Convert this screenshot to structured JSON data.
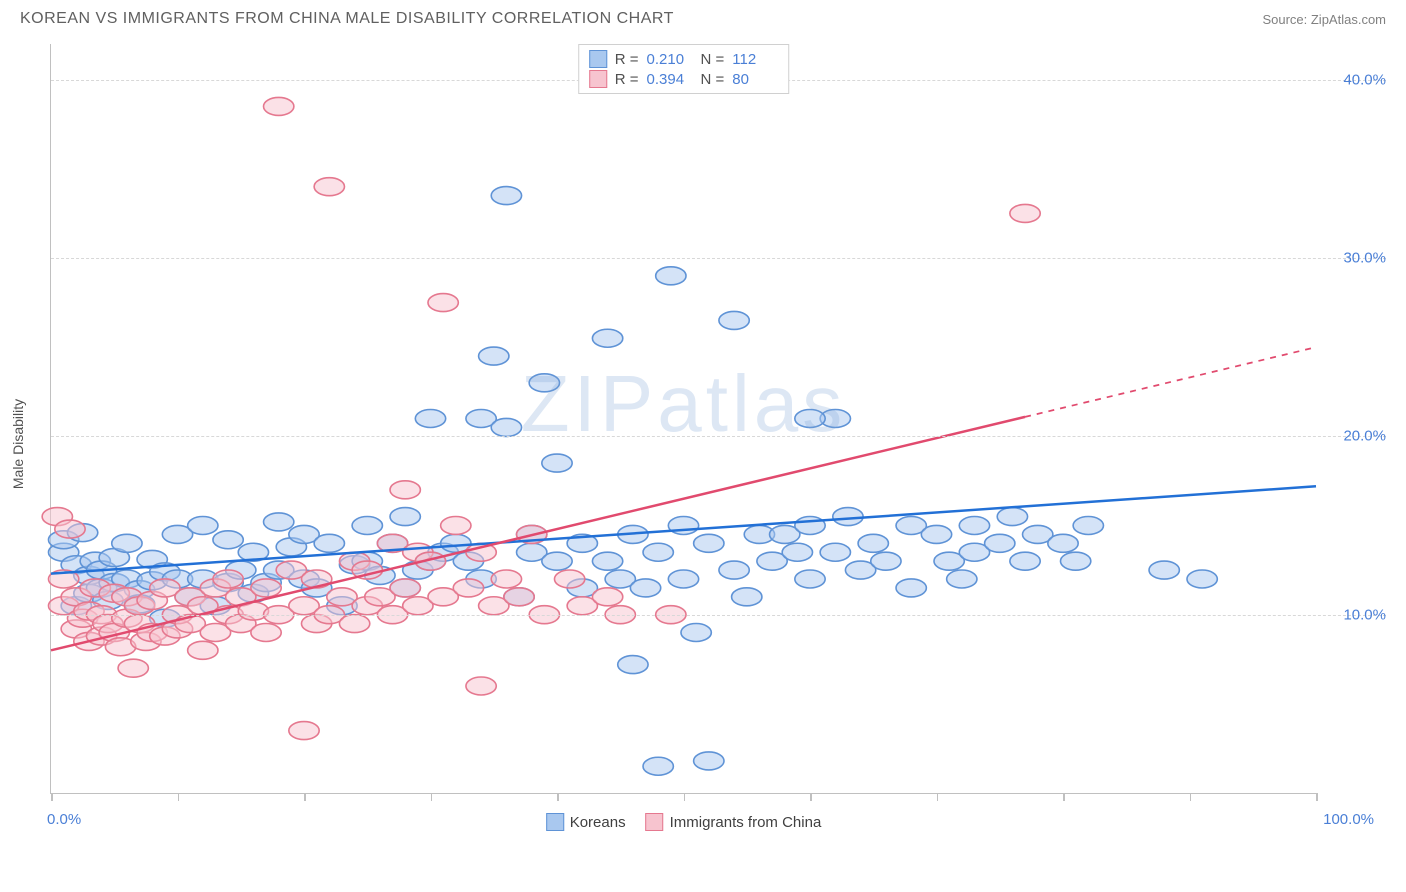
{
  "title": "KOREAN VS IMMIGRANTS FROM CHINA MALE DISABILITY CORRELATION CHART",
  "source": "Source: ZipAtlas.com",
  "watermark": "ZIPatlas",
  "yaxis_title": "Male Disability",
  "chart": {
    "type": "scatter",
    "xlim": [
      0,
      100
    ],
    "ylim": [
      0,
      42
    ],
    "x_tick_step": 10,
    "x_labels": {
      "start": "0.0%",
      "end": "100.0%"
    },
    "y_gridlines": [
      10,
      20,
      30,
      40
    ],
    "y_labels": [
      "10.0%",
      "20.0%",
      "30.0%",
      "40.0%"
    ],
    "background_color": "#ffffff",
    "grid_color": "#d8d8d8",
    "axis_color": "#c0c0c0",
    "label_color": "#4a7fd6",
    "marker_radius": 9,
    "marker_opacity": 0.5,
    "series": [
      {
        "name": "Koreans",
        "color_fill": "#a9c8ef",
        "color_stroke": "#5f93d6",
        "R": "0.210",
        "N": "112",
        "trend": {
          "x1": 0,
          "y1": 12.3,
          "x2": 100,
          "y2": 17.2,
          "color": "#2270d6",
          "width": 2.5,
          "dash_after_x": 100
        },
        "points": [
          [
            1,
            13.5
          ],
          [
            1,
            14.2
          ],
          [
            2,
            12.8
          ],
          [
            2,
            10.5
          ],
          [
            2.5,
            14.6
          ],
          [
            3,
            11.2
          ],
          [
            3,
            12.2
          ],
          [
            3.5,
            13.0
          ],
          [
            4,
            11.5
          ],
          [
            4,
            12.5
          ],
          [
            4.5,
            10.8
          ],
          [
            5,
            11.8
          ],
          [
            5,
            13.2
          ],
          [
            6,
            12.0
          ],
          [
            6,
            14.0
          ],
          [
            7,
            11.4
          ],
          [
            7,
            10.6
          ],
          [
            8,
            11.9
          ],
          [
            8,
            13.1
          ],
          [
            9,
            9.8
          ],
          [
            9,
            12.4
          ],
          [
            10,
            12.0
          ],
          [
            10,
            14.5
          ],
          [
            11,
            11.0
          ],
          [
            12,
            15.0
          ],
          [
            12,
            12.0
          ],
          [
            13,
            10.5
          ],
          [
            14,
            11.8
          ],
          [
            14,
            14.2
          ],
          [
            15,
            12.5
          ],
          [
            16,
            13.5
          ],
          [
            16,
            11.2
          ],
          [
            17,
            11.8
          ],
          [
            18,
            12.5
          ],
          [
            18,
            15.2
          ],
          [
            19,
            13.8
          ],
          [
            20,
            12.0
          ],
          [
            20,
            14.5
          ],
          [
            21,
            11.5
          ],
          [
            22,
            14.0
          ],
          [
            23,
            10.5
          ],
          [
            24,
            12.8
          ],
          [
            25,
            15.0
          ],
          [
            25,
            13.0
          ],
          [
            26,
            12.2
          ],
          [
            27,
            14.0
          ],
          [
            28,
            11.5
          ],
          [
            28,
            15.5
          ],
          [
            29,
            12.5
          ],
          [
            30,
            13.0
          ],
          [
            30,
            21.0
          ],
          [
            31,
            13.5
          ],
          [
            32,
            14.0
          ],
          [
            33,
            13.0
          ],
          [
            34,
            12.0
          ],
          [
            34,
            21.0
          ],
          [
            35,
            24.5
          ],
          [
            36,
            20.5
          ],
          [
            36,
            33.5
          ],
          [
            37,
            11.0
          ],
          [
            38,
            13.5
          ],
          [
            38,
            14.5
          ],
          [
            39,
            23.0
          ],
          [
            40,
            13.0
          ],
          [
            40,
            18.5
          ],
          [
            42,
            11.5
          ],
          [
            42,
            14.0
          ],
          [
            44,
            13.0
          ],
          [
            44,
            25.5
          ],
          [
            45,
            12.0
          ],
          [
            46,
            7.2
          ],
          [
            46,
            14.5
          ],
          [
            47,
            11.5
          ],
          [
            48,
            1.5
          ],
          [
            48,
            13.5
          ],
          [
            49,
            29.0
          ],
          [
            50,
            12.0
          ],
          [
            50,
            15.0
          ],
          [
            51,
            9.0
          ],
          [
            52,
            1.8
          ],
          [
            52,
            14.0
          ],
          [
            54,
            12.5
          ],
          [
            54,
            26.5
          ],
          [
            55,
            11.0
          ],
          [
            56,
            14.5
          ],
          [
            57,
            13.0
          ],
          [
            58,
            14.5
          ],
          [
            59,
            13.5
          ],
          [
            60,
            12.0
          ],
          [
            60,
            15.0
          ],
          [
            62,
            13.5
          ],
          [
            62,
            21.0
          ],
          [
            63,
            15.5
          ],
          [
            64,
            12.5
          ],
          [
            65,
            14.0
          ],
          [
            66,
            13.0
          ],
          [
            68,
            15.0
          ],
          [
            68,
            11.5
          ],
          [
            70,
            14.5
          ],
          [
            71,
            13.0
          ],
          [
            72,
            12.0
          ],
          [
            73,
            15.0
          ],
          [
            73,
            13.5
          ],
          [
            75,
            14.0
          ],
          [
            76,
            15.5
          ],
          [
            77,
            13.0
          ],
          [
            78,
            14.5
          ],
          [
            80,
            14.0
          ],
          [
            81,
            13.0
          ],
          [
            82,
            15.0
          ],
          [
            88,
            12.5
          ],
          [
            91,
            12.0
          ],
          [
            60,
            21.0
          ]
        ]
      },
      {
        "name": "Immigrants from China",
        "color_fill": "#f7c4cf",
        "color_stroke": "#e5788f",
        "R": "0.394",
        "N": "80",
        "trend": {
          "x1": 0,
          "y1": 8.0,
          "x2": 100,
          "y2": 25.0,
          "color": "#e14a6e",
          "width": 2.5,
          "dash_after_x": 77
        },
        "points": [
          [
            0.5,
            15.5
          ],
          [
            1,
            10.5
          ],
          [
            1,
            12.0
          ],
          [
            1.5,
            14.8
          ],
          [
            2,
            9.2
          ],
          [
            2,
            11.0
          ],
          [
            2.5,
            9.8
          ],
          [
            3,
            8.5
          ],
          [
            3,
            10.2
          ],
          [
            3.5,
            11.5
          ],
          [
            4,
            8.8
          ],
          [
            4,
            10.0
          ],
          [
            4.5,
            9.5
          ],
          [
            5,
            9.0
          ],
          [
            5,
            11.2
          ],
          [
            5.5,
            8.2
          ],
          [
            6,
            9.8
          ],
          [
            6,
            11.0
          ],
          [
            6.5,
            7.0
          ],
          [
            7,
            9.5
          ],
          [
            7,
            10.5
          ],
          [
            7.5,
            8.5
          ],
          [
            8,
            9.0
          ],
          [
            8,
            10.8
          ],
          [
            9,
            8.8
          ],
          [
            9,
            11.5
          ],
          [
            10,
            9.2
          ],
          [
            10,
            10.0
          ],
          [
            11,
            9.5
          ],
          [
            11,
            11.0
          ],
          [
            12,
            8.0
          ],
          [
            12,
            10.5
          ],
          [
            13,
            9.0
          ],
          [
            13,
            11.5
          ],
          [
            14,
            10.0
          ],
          [
            14,
            12.0
          ],
          [
            15,
            9.5
          ],
          [
            15,
            11.0
          ],
          [
            16,
            10.2
          ],
          [
            17,
            9.0
          ],
          [
            17,
            11.5
          ],
          [
            18,
            10.0
          ],
          [
            18,
            38.5
          ],
          [
            19,
            12.5
          ],
          [
            20,
            10.5
          ],
          [
            20,
            3.5
          ],
          [
            21,
            9.5
          ],
          [
            21,
            12.0
          ],
          [
            22,
            10.0
          ],
          [
            22,
            34.0
          ],
          [
            23,
            11.0
          ],
          [
            24,
            9.5
          ],
          [
            24,
            13.0
          ],
          [
            25,
            10.5
          ],
          [
            25,
            12.5
          ],
          [
            26,
            11.0
          ],
          [
            27,
            10.0
          ],
          [
            27,
            14.0
          ],
          [
            28,
            11.5
          ],
          [
            28,
            17.0
          ],
          [
            29,
            10.5
          ],
          [
            29,
            13.5
          ],
          [
            30,
            13.0
          ],
          [
            31,
            11.0
          ],
          [
            31,
            27.5
          ],
          [
            32,
            15.0
          ],
          [
            33,
            11.5
          ],
          [
            34,
            13.5
          ],
          [
            34,
            6.0
          ],
          [
            35,
            10.5
          ],
          [
            36,
            12.0
          ],
          [
            37,
            11.0
          ],
          [
            38,
            14.5
          ],
          [
            39,
            10.0
          ],
          [
            41,
            12.0
          ],
          [
            42,
            10.5
          ],
          [
            44,
            11.0
          ],
          [
            45,
            10.0
          ],
          [
            49,
            10.0
          ],
          [
            77,
            32.5
          ]
        ]
      }
    ]
  },
  "legend_bottom": [
    {
      "label": "Koreans",
      "fill": "#a9c8ef",
      "stroke": "#5f93d6"
    },
    {
      "label": "Immigrants from China",
      "fill": "#f7c4cf",
      "stroke": "#e5788f"
    }
  ]
}
